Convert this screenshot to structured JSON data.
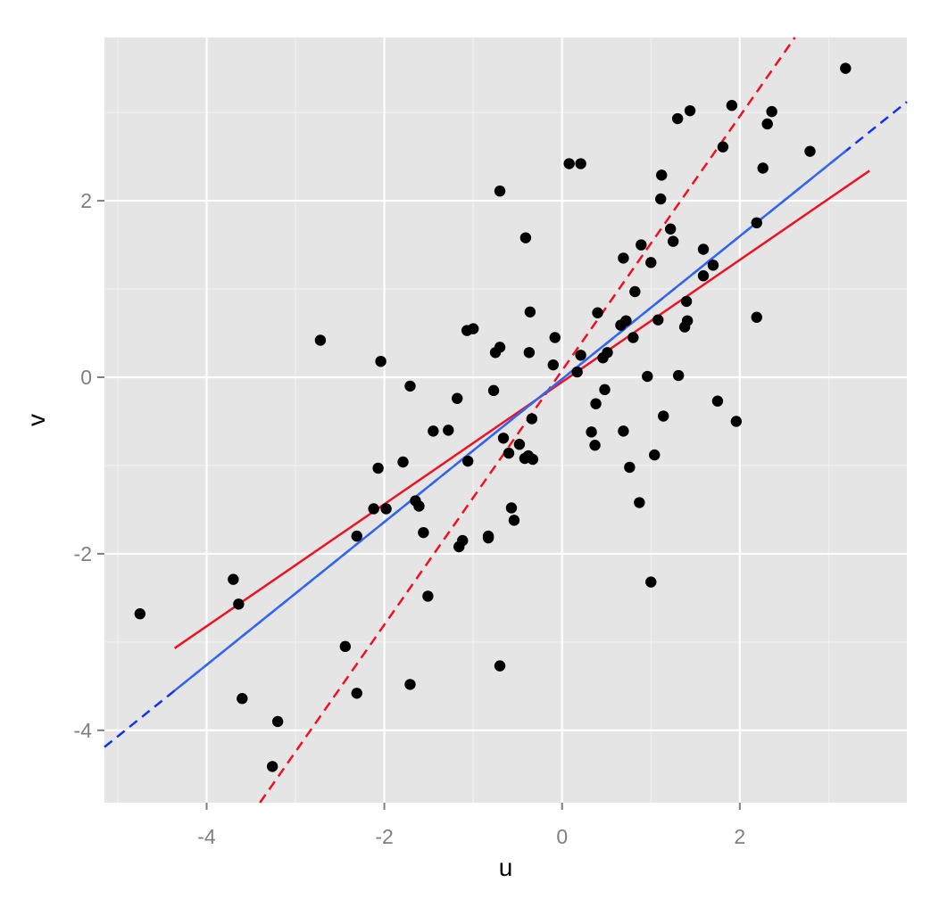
{
  "chart_data": {
    "type": "scatter",
    "title": "",
    "xlabel": "u",
    "ylabel": "v",
    "xlim": [
      -5.15,
      3.88
    ],
    "ylim": [
      -4.82,
      3.85
    ],
    "x_ticks": [
      -4,
      -2,
      0,
      2
    ],
    "x_tick_labels": [
      "-4",
      "-2",
      "0",
      "2"
    ],
    "y_ticks": [
      -4,
      -2,
      0,
      2
    ],
    "y_tick_labels": [
      "-4",
      "-2",
      "0",
      "2"
    ],
    "grid": true,
    "legend": "none",
    "colors": {
      "panel": "#e5e5e5",
      "grid_major": "#ffffff",
      "grid_minor": "#f2f2f2",
      "points": "#000000",
      "red_line": "#ee1122",
      "blue_line": "#1133ee",
      "tick_label": "#7f7f7f"
    },
    "points": [
      {
        "x": -4.75,
        "y": -2.68
      },
      {
        "x": -3.7,
        "y": -2.29
      },
      {
        "x": -3.64,
        "y": -2.57
      },
      {
        "x": -3.6,
        "y": -3.64
      },
      {
        "x": -3.26,
        "y": -4.41
      },
      {
        "x": -3.2,
        "y": -3.9
      },
      {
        "x": -2.72,
        "y": 0.42
      },
      {
        "x": -2.44,
        "y": -3.05
      },
      {
        "x": -2.31,
        "y": -1.8
      },
      {
        "x": -2.31,
        "y": -3.58
      },
      {
        "x": -2.12,
        "y": -1.49
      },
      {
        "x": -2.07,
        "y": -1.03
      },
      {
        "x": -2.04,
        "y": 0.18
      },
      {
        "x": -1.98,
        "y": -1.49
      },
      {
        "x": -1.79,
        "y": -0.96
      },
      {
        "x": -1.71,
        "y": -0.1
      },
      {
        "x": -1.71,
        "y": -3.48
      },
      {
        "x": -1.65,
        "y": -1.4
      },
      {
        "x": -1.61,
        "y": -1.46
      },
      {
        "x": -1.56,
        "y": -1.76
      },
      {
        "x": -1.51,
        "y": -2.48
      },
      {
        "x": -1.45,
        "y": -0.61
      },
      {
        "x": -1.28,
        "y": -0.6
      },
      {
        "x": -1.18,
        "y": -0.24
      },
      {
        "x": -1.16,
        "y": -1.92
      },
      {
        "x": -1.12,
        "y": -1.85
      },
      {
        "x": -1.07,
        "y": 0.53
      },
      {
        "x": -1.06,
        "y": -0.95
      },
      {
        "x": -1.0,
        "y": 0.55
      },
      {
        "x": -0.83,
        "y": -1.82
      },
      {
        "x": -0.83,
        "y": -1.8
      },
      {
        "x": -0.77,
        "y": -0.15
      },
      {
        "x": -0.75,
        "y": 0.28
      },
      {
        "x": -0.7,
        "y": 2.11
      },
      {
        "x": -0.7,
        "y": 0.34
      },
      {
        "x": -0.7,
        "y": -3.27
      },
      {
        "x": -0.66,
        "y": -0.69
      },
      {
        "x": -0.6,
        "y": -0.86
      },
      {
        "x": -0.57,
        "y": -1.48
      },
      {
        "x": -0.54,
        "y": -1.62
      },
      {
        "x": -0.48,
        "y": -0.76
      },
      {
        "x": -0.42,
        "y": -0.92
      },
      {
        "x": -0.41,
        "y": 1.58
      },
      {
        "x": -0.38,
        "y": -0.89
      },
      {
        "x": -0.37,
        "y": 0.28
      },
      {
        "x": -0.36,
        "y": 0.74
      },
      {
        "x": -0.34,
        "y": -0.47
      },
      {
        "x": -0.33,
        "y": -0.93
      },
      {
        "x": -0.1,
        "y": 0.14
      },
      {
        "x": -0.08,
        "y": 0.45
      },
      {
        "x": 0.08,
        "y": 2.42
      },
      {
        "x": 0.17,
        "y": 0.06
      },
      {
        "x": 0.21,
        "y": 2.42
      },
      {
        "x": 0.21,
        "y": 0.25
      },
      {
        "x": 0.33,
        "y": -0.62
      },
      {
        "x": 0.37,
        "y": -0.77
      },
      {
        "x": 0.38,
        "y": -0.3
      },
      {
        "x": 0.4,
        "y": 0.73
      },
      {
        "x": 0.46,
        "y": 0.22
      },
      {
        "x": 0.48,
        "y": -0.14
      },
      {
        "x": 0.51,
        "y": 0.28
      },
      {
        "x": 0.66,
        "y": 0.59
      },
      {
        "x": 0.69,
        "y": -0.61
      },
      {
        "x": 0.69,
        "y": 1.35
      },
      {
        "x": 0.72,
        "y": 0.64
      },
      {
        "x": 0.76,
        "y": -1.02
      },
      {
        "x": 0.8,
        "y": 0.45
      },
      {
        "x": 0.82,
        "y": 0.97
      },
      {
        "x": 0.87,
        "y": -1.42
      },
      {
        "x": 0.89,
        "y": 1.5
      },
      {
        "x": 0.96,
        "y": 0.01
      },
      {
        "x": 1.0,
        "y": 1.3
      },
      {
        "x": 1.0,
        "y": -2.32
      },
      {
        "x": 1.04,
        "y": -0.88
      },
      {
        "x": 1.08,
        "y": 0.65
      },
      {
        "x": 1.11,
        "y": 2.02
      },
      {
        "x": 1.12,
        "y": 2.29
      },
      {
        "x": 1.14,
        "y": -0.44
      },
      {
        "x": 1.22,
        "y": 1.68
      },
      {
        "x": 1.25,
        "y": 1.54
      },
      {
        "x": 1.3,
        "y": 2.93
      },
      {
        "x": 1.31,
        "y": 0.02
      },
      {
        "x": 1.38,
        "y": 0.57
      },
      {
        "x": 1.4,
        "y": 0.86
      },
      {
        "x": 1.41,
        "y": 0.64
      },
      {
        "x": 1.44,
        "y": 3.02
      },
      {
        "x": 1.59,
        "y": 1.45
      },
      {
        "x": 1.59,
        "y": 1.15
      },
      {
        "x": 1.7,
        "y": 1.27
      },
      {
        "x": 1.75,
        "y": -0.27
      },
      {
        "x": 1.81,
        "y": 2.61
      },
      {
        "x": 1.91,
        "y": 3.08
      },
      {
        "x": 1.96,
        "y": -0.5
      },
      {
        "x": 2.19,
        "y": 1.75
      },
      {
        "x": 2.19,
        "y": 0.68
      },
      {
        "x": 2.26,
        "y": 2.37
      },
      {
        "x": 2.31,
        "y": 2.87
      },
      {
        "x": 2.36,
        "y": 3.01
      },
      {
        "x": 2.79,
        "y": 2.56
      },
      {
        "x": 3.19,
        "y": 3.5
      }
    ],
    "lines": [
      {
        "color": "#ee1122",
        "dash": "solid",
        "x": [
          -4.36,
          3.46
        ],
        "y": [
          -3.07,
          2.34
        ]
      },
      {
        "color": "#ee1122",
        "dash": "dashed",
        "x": [
          -3.4,
          2.62
        ],
        "y": [
          -4.82,
          3.85
        ]
      },
      {
        "color": "#1133ee",
        "dash": "dashed",
        "x": [
          -5.15,
          3.88
        ],
        "y": [
          -4.19,
          3.12
        ]
      },
      {
        "color": "#3366ee",
        "dash": "solid",
        "x": [
          -4.36,
          3.2
        ],
        "y": [
          -3.55,
          2.57
        ]
      }
    ]
  }
}
